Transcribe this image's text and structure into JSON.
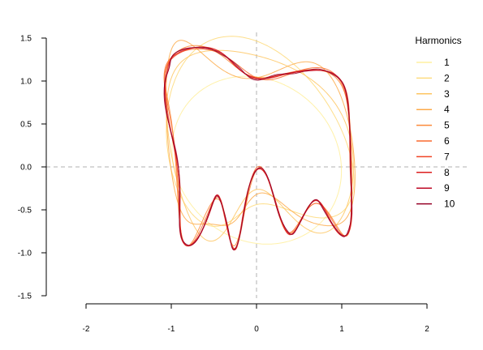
{
  "chart_data": {
    "type": "line",
    "title": "",
    "xlabel": "",
    "ylabel": "",
    "xlim": [
      -2,
      2
    ],
    "ylim": [
      -1.5,
      1.5
    ],
    "x_ticks": [
      -2,
      -1,
      0,
      1,
      2
    ],
    "y_ticks": [
      -1.5,
      -1.0,
      -0.5,
      0.0,
      0.5,
      1.0,
      1.5
    ],
    "x_tick_labels": [
      "-2",
      "-1",
      "0",
      "1",
      "2"
    ],
    "y_tick_labels": [
      "-1.5",
      "-1.0",
      "-0.5",
      "0.0",
      "0.5",
      "1.0",
      "1.5"
    ],
    "reference_lines": {
      "x": 0,
      "y": 0,
      "style": "dashed",
      "color": "#b0b0b0"
    },
    "grid": false,
    "legend": {
      "title": "Harmonics",
      "placement": "top-right",
      "entries": [
        "1",
        "2",
        "3",
        "4",
        "5",
        "6",
        "7",
        "8",
        "9",
        "10"
      ]
    },
    "series": [
      {
        "name": "1",
        "color": "#FFF0A0"
      },
      {
        "name": "2",
        "color": "#FEDC80"
      },
      {
        "name": "3",
        "color": "#FEC560"
      },
      {
        "name": "4",
        "color": "#FDAA48"
      },
      {
        "name": "5",
        "color": "#FC8A3A"
      },
      {
        "name": "6",
        "color": "#FA6A2E"
      },
      {
        "name": "7",
        "color": "#F04424"
      },
      {
        "name": "8",
        "color": "#DC1E1E"
      },
      {
        "name": "9",
        "color": "#BE0826"
      },
      {
        "name": "10",
        "color": "#960026"
      }
    ],
    "outline_shape": [
      [
        -1.02,
        1.18
      ],
      [
        -0.98,
        1.3
      ],
      [
        -0.8,
        1.38
      ],
      [
        -0.55,
        1.38
      ],
      [
        -0.4,
        1.3
      ],
      [
        -0.22,
        1.18
      ],
      [
        -0.05,
        1.02
      ],
      [
        0.15,
        1.05
      ],
      [
        0.35,
        1.08
      ],
      [
        0.58,
        1.12
      ],
      [
        0.8,
        1.12
      ],
      [
        0.98,
        1.02
      ],
      [
        1.06,
        0.8
      ],
      [
        1.1,
        0.4
      ],
      [
        1.1,
        0.0
      ],
      [
        1.12,
        -0.4
      ],
      [
        1.1,
        -0.65
      ],
      [
        1.05,
        -0.8
      ],
      [
        0.95,
        -0.75
      ],
      [
        0.82,
        -0.55
      ],
      [
        0.72,
        -0.4
      ],
      [
        0.62,
        -0.45
      ],
      [
        0.48,
        -0.7
      ],
      [
        0.4,
        -0.78
      ],
      [
        0.3,
        -0.65
      ],
      [
        0.22,
        -0.4
      ],
      [
        0.12,
        -0.1
      ],
      [
        0.02,
        -0.02
      ],
      [
        -0.08,
        -0.2
      ],
      [
        -0.15,
        -0.55
      ],
      [
        -0.22,
        -0.88
      ],
      [
        -0.28,
        -0.95
      ],
      [
        -0.34,
        -0.7
      ],
      [
        -0.42,
        -0.4
      ],
      [
        -0.48,
        -0.35
      ],
      [
        -0.56,
        -0.55
      ],
      [
        -0.7,
        -0.85
      ],
      [
        -0.82,
        -0.9
      ],
      [
        -0.9,
        -0.75
      ],
      [
        -0.9,
        -0.4
      ],
      [
        -0.92,
        0.0
      ],
      [
        -1.0,
        0.4
      ],
      [
        -1.08,
        0.8
      ],
      [
        -1.06,
        1.05
      ]
    ]
  }
}
